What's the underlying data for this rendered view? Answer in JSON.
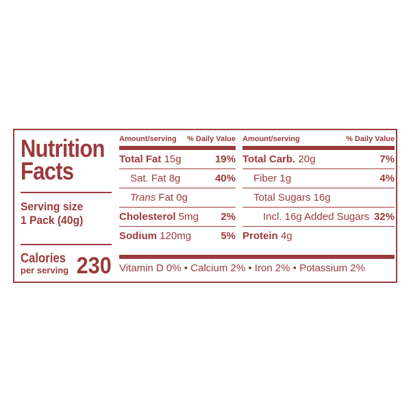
{
  "title_line1": "Nutrition",
  "title_line2": "Facts",
  "serving_size_label": "Serving size",
  "serving_size_value": "1 Pack (40g)",
  "calories_label": "Calories",
  "calories_sub": "per serving",
  "calories_value": "230",
  "header_amount": "Amount/serving",
  "header_dv": "% Daily Value",
  "col1": [
    {
      "label": "Total Fat",
      "amount": "15g",
      "dv": "19%"
    },
    {
      "label": "Sat. Fat",
      "amount": "8g",
      "dv": "40%"
    },
    {
      "label": "Trans",
      "label2": "Fat",
      "amount": "0g",
      "dv": ""
    },
    {
      "label": "Cholesterol",
      "amount": "5mg",
      "dv": "2%"
    },
    {
      "label": "Sodium",
      "amount": "120mg",
      "dv": "5%"
    }
  ],
  "col2": [
    {
      "label": "Total Carb.",
      "amount": "20g",
      "dv": "7%"
    },
    {
      "label": "Fiber",
      "amount": "1g",
      "dv": "4%"
    },
    {
      "label": "Total Sugars",
      "amount": "16g",
      "dv": ""
    },
    {
      "label": "Incl. 16g Added Sugars",
      "amount": "",
      "dv": "32%"
    },
    {
      "label": "Protein",
      "amount": "4g",
      "dv": ""
    }
  ],
  "vitamins": "Vitamin D 0% • Calcium 2% • Iron 2% • Potassium 2%",
  "colors": {
    "brand": "#9b3a3c",
    "background": "#ffffff"
  }
}
